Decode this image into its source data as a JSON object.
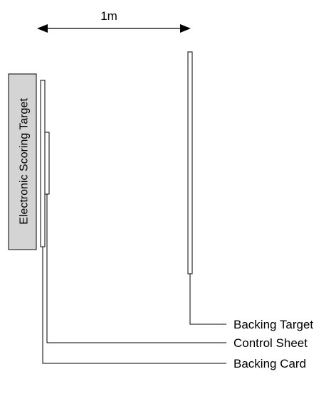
{
  "distance_label": "1m",
  "device_label": "Electronic Scoring Target",
  "callouts": {
    "backing_target": "Backing Target",
    "control_sheet": "Control Sheet",
    "backing_card": "Backing Card"
  },
  "colors": {
    "device_fill": "#d4d4d4",
    "stroke": "#000000",
    "panel_fill": "#ffffff"
  }
}
